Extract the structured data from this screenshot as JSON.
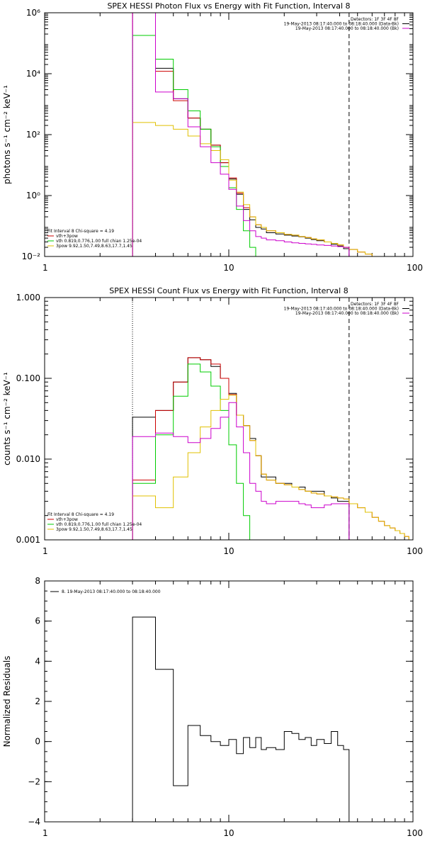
{
  "chart_data": [
    {
      "type": "line",
      "title": "SPEX HESSI Photon Flux vs Energy with Fit Function, Interval 8",
      "xlabel": "",
      "ylabel": "photons s⁻¹ cm⁻² keV⁻¹",
      "xscale": "log",
      "yscale": "log",
      "xlim": [
        1,
        100
      ],
      "ylim": [
        0.01,
        1000000
      ],
      "xticks": [
        1,
        10,
        100
      ],
      "xtick_labels": [
        "1",
        "10",
        "100"
      ],
      "yticks": [
        0.01,
        1,
        100,
        10000,
        1000000
      ],
      "ytick_labels": [
        "10⁻²",
        "10⁰",
        "10²",
        "10⁴",
        "10⁶"
      ],
      "vlines": [
        {
          "x": 3,
          "style": "dotted"
        },
        {
          "x": 45,
          "style": "dashed"
        }
      ],
      "legend_topright": [
        "Detectors: 1F 3F 4F 8F",
        "19-May-2013 08:17:40.000 to 08:18:40.000 (Data-Bk)",
        "19-May-2013 08:17:40.000 to 08:18:40.000 (Bk)"
      ],
      "legend_topright_colors": [
        "#000000",
        "#000000",
        "#cc00cc"
      ],
      "legend_bottomleft": [
        "Fit Interval 8   Chi-square = 4.19",
        "vth+3pow",
        "vth 0.819,0.776,1.00  full chian 1.25e-04",
        "3pow 9.92,1.50,7.49,8.63,17.7,1.45"
      ],
      "legend_bottomleft_colors": [
        "#000000",
        "#cc0000",
        "#00cc00",
        "#e0c000"
      ],
      "bin_edges": [
        3,
        4,
        5,
        6,
        7,
        8,
        9,
        10,
        11,
        12,
        13,
        14,
        15,
        16,
        18,
        20,
        22,
        24,
        26,
        28,
        30,
        33,
        36,
        39,
        42,
        45,
        50,
        55,
        60,
        65,
        70
      ],
      "series": [
        {
          "name": "Data-Bk",
          "color": "#000000",
          "values": [
            1000000,
            15000,
            1500,
            350,
            150,
            45,
            12,
            3.5,
            1.1,
            0.35,
            0.16,
            0.09,
            0.08,
            0.06,
            0.055,
            0.05,
            0.047,
            0.044,
            0.04,
            0.036,
            0.033,
            0.03,
            0.025,
            0.022,
            0.018
          ]
        },
        {
          "name": "vth+3pow",
          "color": "#cc0000",
          "values": [
            1000000,
            12000,
            1300,
            350,
            150,
            45,
            12,
            3.8,
            1.2,
            0.4,
            0.2,
            0.11,
            0.09,
            0.07,
            0.06,
            0.053,
            0.05,
            0.045,
            0.042,
            0.038,
            0.035,
            0.03,
            0.027,
            0.024,
            0.02,
            0.017,
            0.014,
            0.012,
            0.01,
            0.01
          ]
        },
        {
          "name": "vth",
          "color": "#00cc00",
          "values": [
            180000,
            30000,
            3000,
            600,
            150,
            40,
            9,
            1.8,
            0.35,
            0.07,
            0.02,
            0.01
          ]
        },
        {
          "name": "3pow",
          "color": "#e0c000",
          "values": [
            250,
            200,
            150,
            90,
            50,
            30,
            15,
            3.2,
            1.3,
            0.5,
            0.2,
            0.11,
            0.09,
            0.07,
            0.06,
            0.053,
            0.05,
            0.045,
            0.042,
            0.038,
            0.035,
            0.03,
            0.027,
            0.024,
            0.02,
            0.017,
            0.014,
            0.012,
            0.01,
            0.01
          ]
        },
        {
          "name": "Bk",
          "color": "#cc00cc",
          "values": [
            1000000,
            2500,
            1500,
            180,
            40,
            12,
            5,
            1.6,
            0.45,
            0.15,
            0.07,
            0.045,
            0.04,
            0.035,
            0.033,
            0.03,
            0.028,
            0.027,
            0.026,
            0.025,
            0.024,
            0.023,
            0.022,
            0.021,
            0.02
          ]
        }
      ]
    },
    {
      "type": "line",
      "title": "SPEX HESSI Count Flux vs Energy with Fit Function, Interval 8",
      "xlabel": "",
      "ylabel": "counts s⁻¹ cm⁻² keV⁻¹",
      "xscale": "log",
      "yscale": "log",
      "xlim": [
        1,
        100
      ],
      "ylim": [
        0.001,
        1
      ],
      "xticks": [
        1,
        10,
        100
      ],
      "xtick_labels": [
        "1",
        "10",
        "100"
      ],
      "yticks": [
        0.001,
        0.01,
        0.1,
        1
      ],
      "ytick_labels": [
        "0.001",
        "0.010",
        "0.100",
        "1.000"
      ],
      "vlines": [
        {
          "x": 3,
          "style": "dotted"
        },
        {
          "x": 45,
          "style": "dashed"
        }
      ],
      "legend_topright": [
        "Detectors: 1F 3F 4F 8F",
        "19-May-2013 08:17:40.000 to 08:18:40.000 (Data-Bk)",
        "19-May-2013 08:17:40.000 to 08:18:40.000 (Bk)"
      ],
      "legend_topright_colors": [
        "#000000",
        "#000000",
        "#cc00cc"
      ],
      "legend_bottomleft": [
        "Fit Interval 8   Chi-square = 4.19",
        "vth+3pow",
        "vth 0.819,0.776,1.00  full chian 1.25e-04",
        "3pow 9.92,1.50,7.49,8.63,17.7,1.45"
      ],
      "legend_bottomleft_colors": [
        "#000000",
        "#cc0000",
        "#00cc00",
        "#e0c000"
      ],
      "bin_edges": [
        3,
        4,
        5,
        6,
        7,
        8,
        9,
        10,
        11,
        12,
        13,
        14,
        15,
        16,
        18,
        20,
        22,
        24,
        26,
        28,
        30,
        33,
        36,
        39,
        42,
        45,
        50,
        55,
        60,
        65,
        70,
        75,
        80,
        85,
        90,
        95,
        100
      ],
      "series": [
        {
          "name": "Data-Bk",
          "color": "#000000",
          "values": [
            0.033,
            0.04,
            0.09,
            0.18,
            0.17,
            0.14,
            0.1,
            0.065,
            0.035,
            0.026,
            0.018,
            0.011,
            0.006,
            0.006,
            0.005,
            0.005,
            0.0045,
            0.0045,
            0.004,
            0.004,
            0.004,
            0.0035,
            0.0033,
            0.003,
            0.003
          ]
        },
        {
          "name": "vth+3pow",
          "color": "#cc0000",
          "values": [
            0.0055,
            0.04,
            0.09,
            0.18,
            0.17,
            0.15,
            0.1,
            0.063,
            0.035,
            0.026,
            0.017,
            0.011,
            0.0065,
            0.0055,
            0.005,
            0.0048,
            0.0045,
            0.0042,
            0.004,
            0.0038,
            0.0037,
            0.0035,
            0.0034,
            0.0033,
            0.0032,
            0.0028,
            0.0025,
            0.0022,
            0.0019,
            0.0017,
            0.0015,
            0.0014,
            0.0013,
            0.0012,
            0.0011,
            0.001
          ]
        },
        {
          "name": "vth",
          "color": "#00cc00",
          "values": [
            0.005,
            0.02,
            0.06,
            0.15,
            0.12,
            0.08,
            0.04,
            0.015,
            0.005,
            0.002,
            0.001
          ]
        },
        {
          "name": "3pow",
          "color": "#e0c000",
          "values": [
            0.0035,
            0.0025,
            0.006,
            0.012,
            0.025,
            0.04,
            0.055,
            0.062,
            0.035,
            0.026,
            0.017,
            0.011,
            0.0065,
            0.0055,
            0.005,
            0.0048,
            0.0045,
            0.0042,
            0.004,
            0.0038,
            0.0037,
            0.0035,
            0.0034,
            0.0033,
            0.0032,
            0.0028,
            0.0025,
            0.0022,
            0.0019,
            0.0017,
            0.0015,
            0.0014,
            0.0013,
            0.0012,
            0.0011,
            0.001
          ]
        },
        {
          "name": "Bk",
          "color": "#cc00cc",
          "values": [
            0.019,
            0.021,
            0.019,
            0.016,
            0.018,
            0.024,
            0.033,
            0.05,
            0.025,
            0.012,
            0.005,
            0.004,
            0.003,
            0.0028,
            0.003,
            0.003,
            0.003,
            0.0028,
            0.0027,
            0.0025,
            0.0025,
            0.0027,
            0.0028,
            0.0028,
            0.0028
          ]
        }
      ]
    },
    {
      "type": "line",
      "title": "",
      "xlabel": "",
      "ylabel": "Normalized Residuals",
      "xscale": "log",
      "yscale": "linear",
      "xlim": [
        1,
        100
      ],
      "ylim": [
        -4,
        8
      ],
      "xticks": [
        1,
        10,
        100
      ],
      "xtick_labels": [
        "1",
        "10",
        "100"
      ],
      "yticks": [
        -4,
        -2,
        0,
        2,
        4,
        6,
        8
      ],
      "ytick_labels": [
        "−4",
        "−2",
        "0",
        "2",
        "4",
        "6",
        "8"
      ],
      "legend": [
        "8. 19-May-2013 08:17:40.000 to 08:18:40.000"
      ],
      "bin_edges": [
        3,
        4,
        5,
        6,
        7,
        8,
        9,
        10,
        11,
        12,
        13,
        14,
        15,
        16,
        18,
        20,
        22,
        24,
        26,
        28,
        30,
        33,
        36,
        39,
        42,
        45
      ],
      "series": [
        {
          "name": "8. 19-May-2013 08:17:40.000 to 08:18:40.000",
          "color": "#000000",
          "values": [
            6.2,
            3.6,
            -2.2,
            0.8,
            0.3,
            0.0,
            -0.2,
            0.1,
            -0.6,
            0.2,
            -0.3,
            0.2,
            -0.4,
            -0.3,
            -0.4,
            0.5,
            0.4,
            0.1,
            0.2,
            -0.2,
            0.1,
            -0.1,
            0.5,
            -0.2,
            -0.4
          ]
        }
      ]
    }
  ]
}
